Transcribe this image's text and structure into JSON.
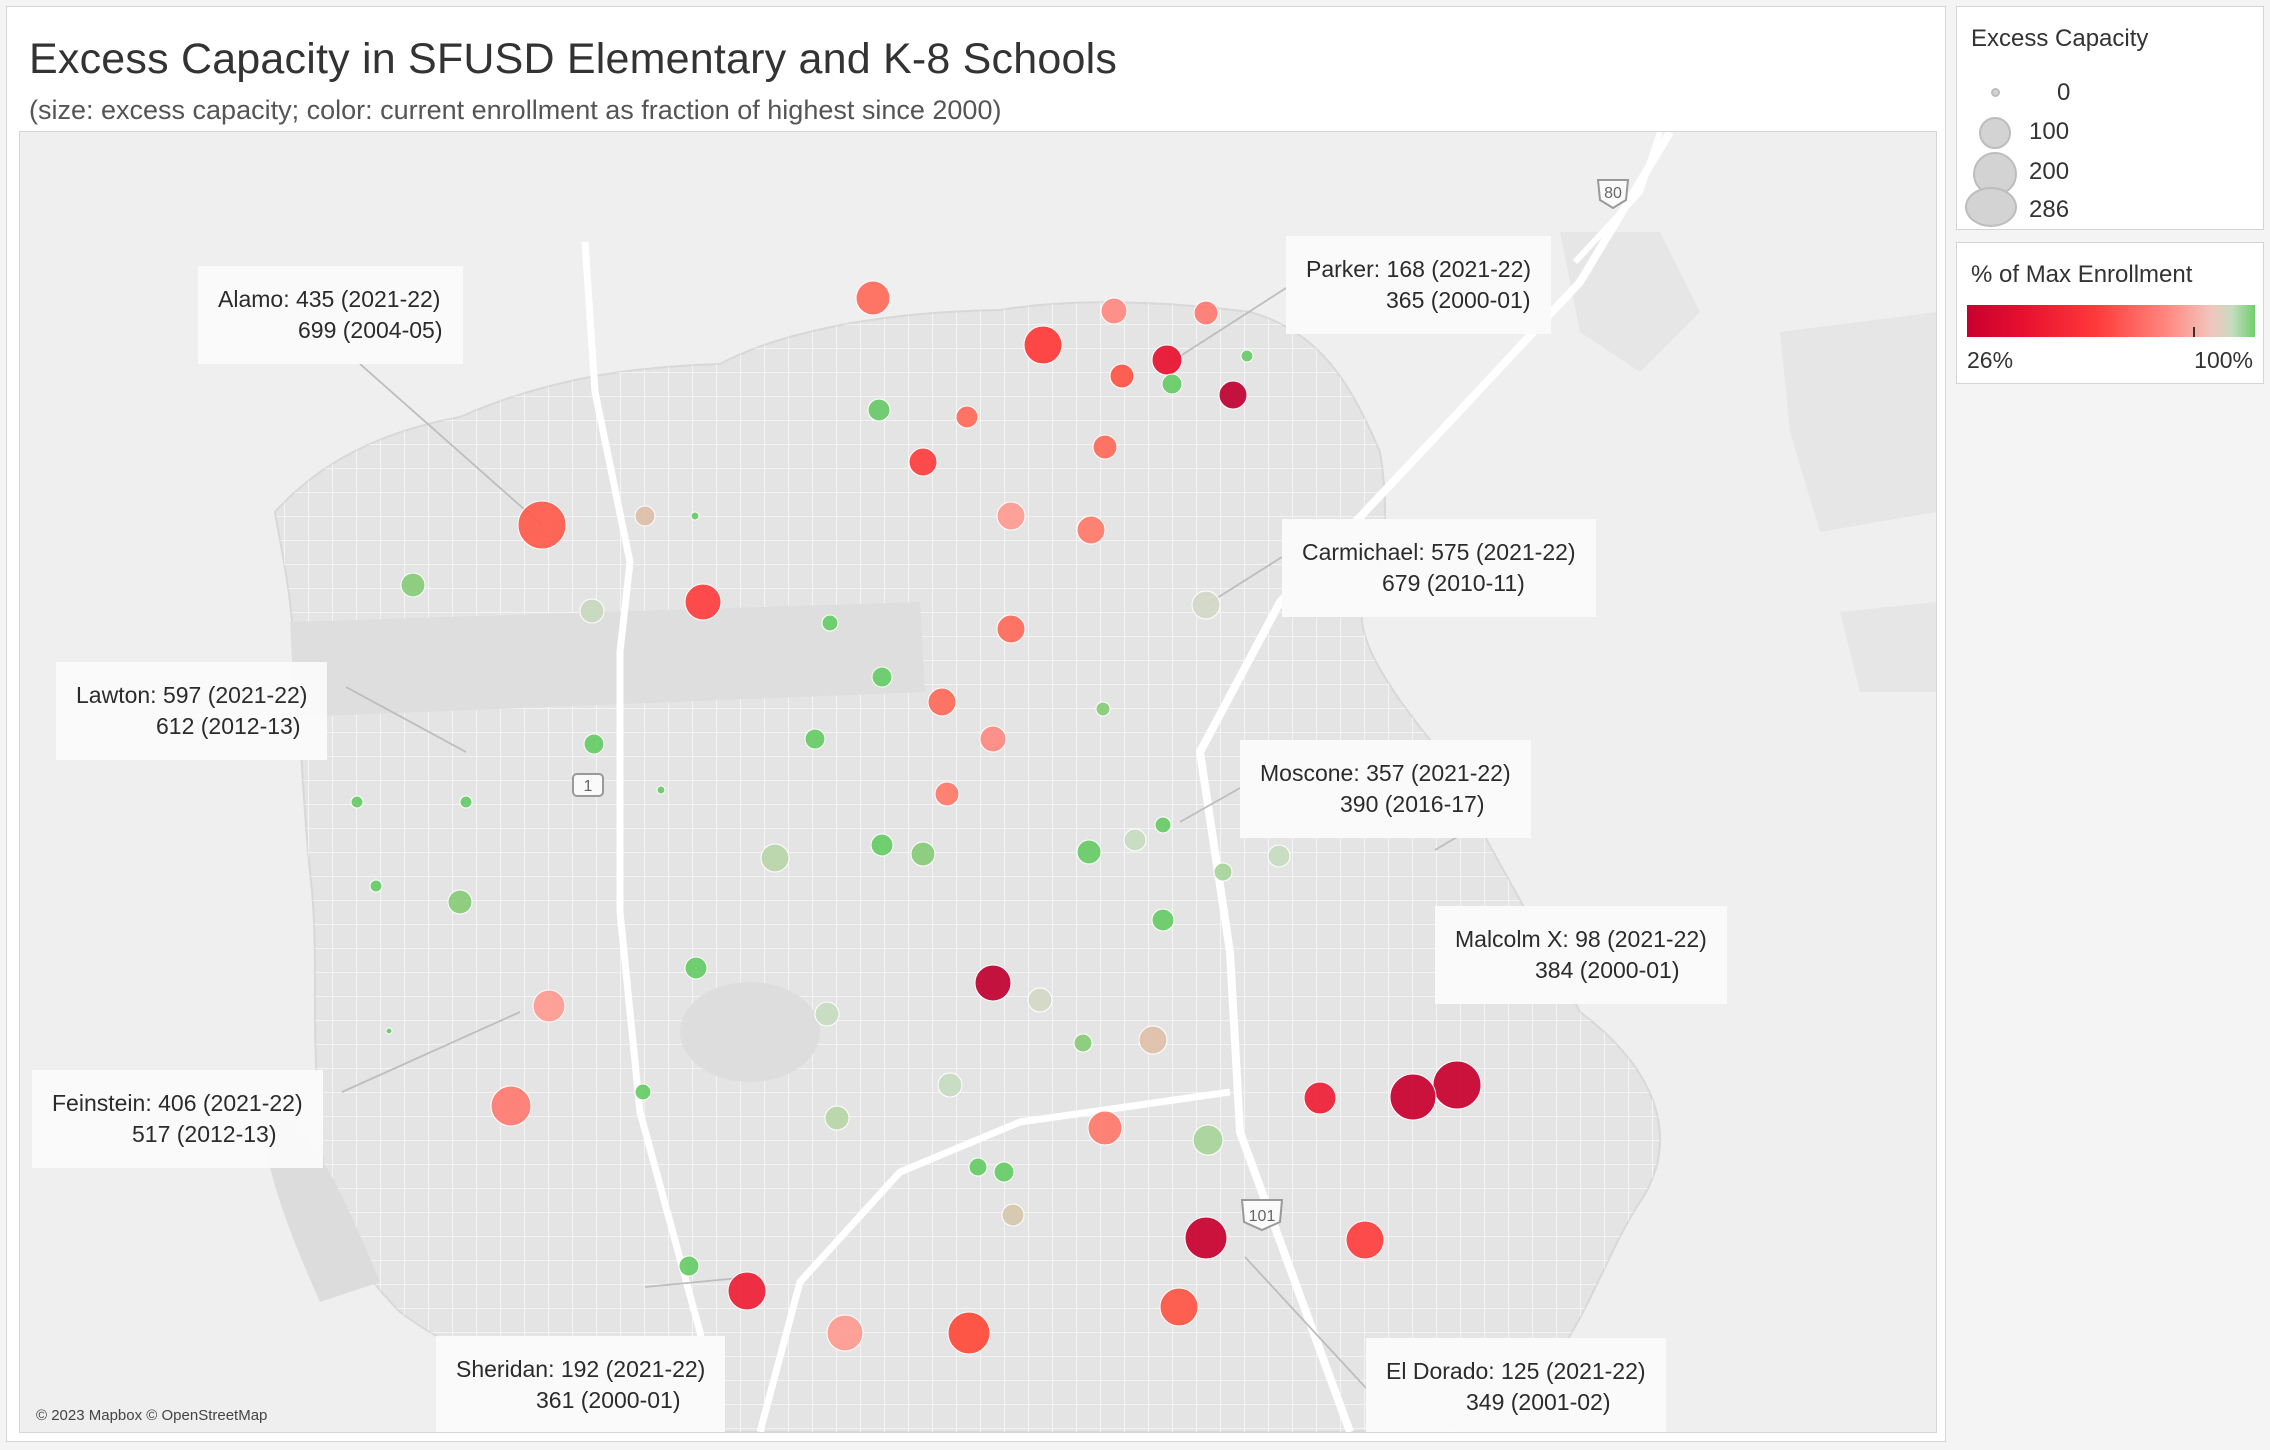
{
  "title": "Excess Capacity in SFUSD Elementary and K-8 Schools",
  "subtitle": "(size: excess capacity; color: current enrollment as fraction of highest since 2000)",
  "attribution": "© 2023 Mapbox © OpenStreetMap",
  "map_labels": {
    "highway_80": "80",
    "highway_1": "1",
    "highway_101": "101"
  },
  "legend_size": {
    "title": "Excess Capacity",
    "items": [
      "0",
      "100",
      "200",
      "286"
    ]
  },
  "legend_color": {
    "title": "% of Max Enrollment",
    "min_label": "26%",
    "max_label": "100%",
    "colors": [
      "#c8002f",
      "#ff3a3a",
      "#ff8a82",
      "#c6dcc0",
      "#6fd06b"
    ]
  },
  "callouts": [
    {
      "line1": "Alamo: 435 (2021-22)",
      "line2": "699 (2004-05)"
    },
    {
      "line1": "Parker: 168 (2021-22)",
      "line2": "365 (2000-01)"
    },
    {
      "line1": "Carmichael: 575 (2021-22)",
      "line2": "679 (2010-11)"
    },
    {
      "line1": "Lawton: 597 (2021-22)",
      "line2": "612 (2012-13)"
    },
    {
      "line1": "Moscone: 357 (2021-22)",
      "line2": "390 (2016-17)"
    },
    {
      "line1": "Malcolm X: 98 (2021-22)",
      "line2": "384 (2000-01)"
    },
    {
      "line1": "Feinstein: 406 (2021-22)",
      "line2": "517 (2012-13)"
    },
    {
      "line1": "Sheridan: 192 (2021-22)",
      "line2": "361 (2000-01)"
    },
    {
      "line1": "El Dorado: 125 (2021-22)",
      "line2": "349 (2001-02)"
    }
  ]
}
